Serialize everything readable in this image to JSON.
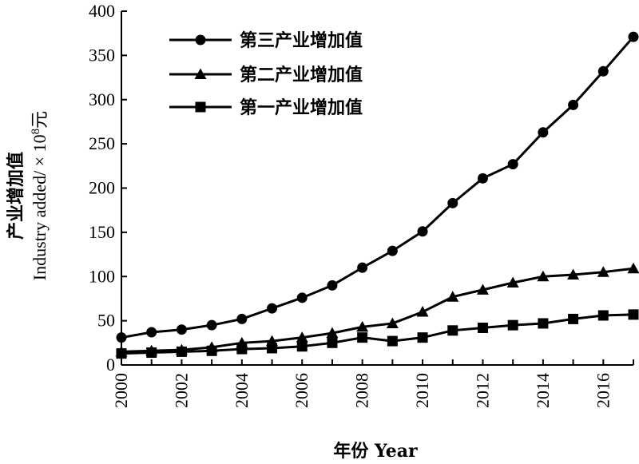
{
  "chart_data": {
    "type": "line",
    "xlabel": "年份 Year",
    "ylabel_line1": "产业增加值",
    "ylabel_line2_prefix": "Industry added/ × 10",
    "ylabel_line2_sup": "8",
    "ylabel_line2_suffix": "元",
    "xlim": [
      2000,
      2017
    ],
    "ylim": [
      0,
      400
    ],
    "xticks": [
      "2000",
      "2002",
      "2004",
      "2006",
      "2008",
      "2010",
      "2012",
      "2014",
      "2016"
    ],
    "yticks": [
      "0",
      "50",
      "100",
      "150",
      "200",
      "250",
      "300",
      "350",
      "400"
    ],
    "legend_position": "top-left",
    "x": [
      2000,
      2001,
      2002,
      2003,
      2004,
      2005,
      2006,
      2007,
      2008,
      2009,
      2010,
      2011,
      2012,
      2013,
      2014,
      2015,
      2016,
      2017
    ],
    "series": [
      {
        "name": "第三产业增加值",
        "marker": "circle",
        "values": [
          31,
          37,
          40,
          45,
          52,
          64,
          76,
          90,
          110,
          129,
          151,
          183,
          211,
          227,
          263,
          294,
          332,
          371
        ]
      },
      {
        "name": "第二产业增加值",
        "marker": "triangle",
        "values": [
          15,
          16,
          17,
          20,
          25,
          27,
          31,
          36,
          43,
          47,
          60,
          77,
          85,
          93,
          100,
          102,
          105,
          109
        ]
      },
      {
        "name": "第一产业增加值",
        "marker": "square",
        "values": [
          13,
          14,
          15,
          16,
          18,
          19,
          21,
          25,
          31,
          27,
          31,
          39,
          42,
          45,
          47,
          52,
          56,
          57
        ]
      }
    ]
  }
}
